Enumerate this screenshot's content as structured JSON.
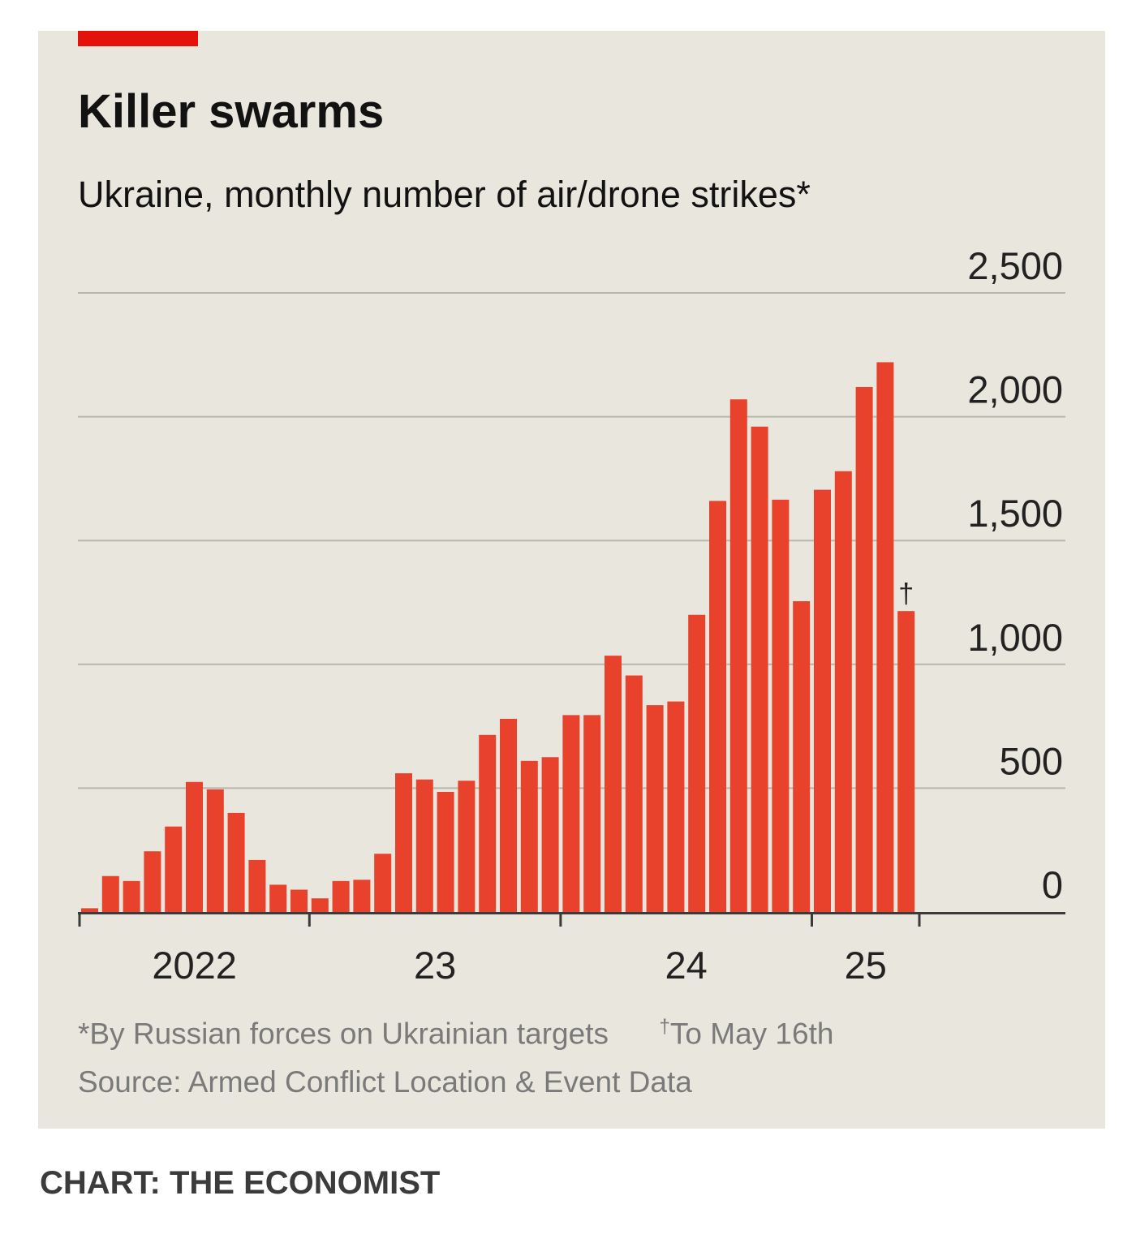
{
  "chart_data": {
    "type": "bar",
    "title": "Killer swarms",
    "subtitle": "Ukraine, monthly number of air/drone strikes*",
    "x": [
      "2022-02",
      "2022-03",
      "2022-04",
      "2022-05",
      "2022-06",
      "2022-07",
      "2022-08",
      "2022-09",
      "2022-10",
      "2022-11",
      "2022-12",
      "2023-01",
      "2023-02",
      "2023-03",
      "2023-04",
      "2023-05",
      "2023-06",
      "2023-07",
      "2023-08",
      "2023-09",
      "2023-10",
      "2023-11",
      "2023-12",
      "2024-01",
      "2024-02",
      "2024-03",
      "2024-04",
      "2024-05",
      "2024-06",
      "2024-07",
      "2024-08",
      "2024-09",
      "2024-10",
      "2024-11",
      "2024-12",
      "2025-01",
      "2025-02",
      "2025-03",
      "2025-04",
      "2025-05"
    ],
    "values": [
      15,
      145,
      125,
      245,
      345,
      525,
      495,
      400,
      210,
      110,
      90,
      55,
      125,
      130,
      235,
      560,
      535,
      485,
      530,
      715,
      780,
      610,
      625,
      795,
      795,
      1035,
      955,
      835,
      850,
      1200,
      1660,
      2070,
      1960,
      1665,
      1255,
      1705,
      1780,
      2120,
      2220,
      1215
    ],
    "series_name": "Air/drone strikes",
    "ylim": [
      0,
      2500
    ],
    "yticks": [
      "0",
      "500",
      "1,000",
      "1,500",
      "2,000",
      "2,500"
    ],
    "ytick_values": [
      0,
      500,
      1000,
      1500,
      2000,
      2500
    ],
    "xticklabels": [
      "2022",
      "23",
      "24",
      "25"
    ],
    "annotation": "†",
    "annotation_index": 39,
    "color": "#e8412c",
    "grid": true,
    "xlabel": "",
    "ylabel": ""
  },
  "footnote": {
    "asterisk": "*By Russian forces on Ukrainian targets",
    "dagger_mark": "†",
    "dagger_text": "To May 16th"
  },
  "source": "Source: Armed Conflict Location & Event Data",
  "credit": "CHART: THE ECONOMIST",
  "colors": {
    "accent": "#e3120b",
    "bar": "#e8412c",
    "panel_background": "#e9e6dd",
    "gridline": "#b9b6ae"
  }
}
